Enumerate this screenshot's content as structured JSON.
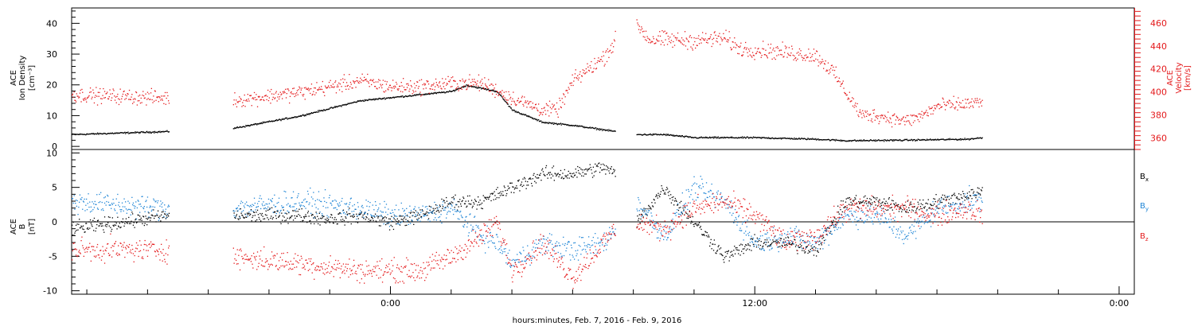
{
  "colors": {
    "black": "#000000",
    "red": "#e41a1c",
    "blue": "#1f85d6"
  },
  "x_axis": {
    "title": "hours:minutes, Feb.  7, 2016 - Feb.  9, 2016",
    "range_hours": [
      -10.5,
      24.5
    ],
    "major_ticks": [
      {
        "hour": 0,
        "label": "0:00"
      },
      {
        "hour": 12,
        "label": "12:00"
      },
      {
        "hour": 24,
        "label": "0:00"
      }
    ]
  },
  "top_panel": {
    "left_label": [
      "ACE",
      "Ion Density",
      "[cm⁻³]"
    ],
    "right_label": [
      "ACE",
      "Velocity",
      "[km/s]"
    ]
  },
  "bottom_panel": {
    "left_label": [
      "ACE",
      "B",
      "[nT]"
    ],
    "legend": [
      {
        "text": "B",
        "sub": "x",
        "color": "#000000"
      },
      {
        "text": "B",
        "sub": "y",
        "color": "#1f85d6"
      },
      {
        "text": "B",
        "sub": "z",
        "color": "#e41a1c"
      }
    ]
  },
  "chart_data": [
    {
      "type": "scatter",
      "panel": "top",
      "ylim": [
        -1,
        45
      ],
      "yticks": [
        0,
        10,
        20,
        30,
        40
      ],
      "y2lim": [
        350,
        473
      ],
      "y2ticks": [
        360,
        380,
        400,
        420,
        440,
        460
      ],
      "gaps_hours": [
        [
          -7.3,
          -5.2
        ],
        [
          7.4,
          8.1
        ]
      ],
      "series": [
        {
          "name": "Ion Density",
          "axis": "left",
          "color": "#000000",
          "anchors": [
            [
              -10.5,
              4
            ],
            [
              -7.3,
              5
            ],
            [
              -5.2,
              6
            ],
            [
              -3,
              10
            ],
            [
              -1,
              15
            ],
            [
              0,
              16
            ],
            [
              1,
              17
            ],
            [
              2,
              18
            ],
            [
              2.5,
              20
            ],
            [
              3.5,
              18
            ],
            [
              4,
              12
            ],
            [
              5,
              8
            ],
            [
              6,
              7
            ],
            [
              7.4,
              5
            ],
            [
              8.1,
              4
            ],
            [
              9,
              4
            ],
            [
              10,
              3
            ],
            [
              11,
              3
            ],
            [
              12,
              3
            ],
            [
              14,
              2.5
            ],
            [
              15,
              2
            ],
            [
              17,
              2.2
            ],
            [
              19,
              2.5
            ],
            [
              19.5,
              3
            ]
          ],
          "spread": 0.25
        },
        {
          "name": "Velocity",
          "axis": "right",
          "color": "#e41a1c",
          "anchors": [
            [
              -10.5,
              398
            ],
            [
              -7.3,
              395
            ],
            [
              -5.2,
              393
            ],
            [
              -3,
              400
            ],
            [
              -1,
              410
            ],
            [
              0,
              405
            ],
            [
              1,
              405
            ],
            [
              2,
              408
            ],
            [
              3,
              408
            ],
            [
              4,
              395
            ],
            [
              5,
              385
            ],
            [
              5.5,
              385
            ],
            [
              6,
              410
            ],
            [
              6.5,
              420
            ],
            [
              7,
              430
            ],
            [
              7.4,
              445
            ],
            [
              8.1,
              460
            ],
            [
              8.5,
              446
            ],
            [
              10,
              445
            ],
            [
              11,
              447
            ],
            [
              11.5,
              438
            ],
            [
              12.5,
              436
            ],
            [
              14,
              432
            ],
            [
              14.5,
              420
            ],
            [
              15,
              400
            ],
            [
              15.5,
              380
            ],
            [
              16,
              380
            ],
            [
              17,
              375
            ],
            [
              17.5,
              380
            ],
            [
              18,
              388
            ],
            [
              19,
              390
            ],
            [
              19.5,
              391
            ]
          ],
          "spread": 0.012
        }
      ]
    },
    {
      "type": "scatter",
      "panel": "bottom",
      "ylim": [
        -10.5,
        10.5
      ],
      "yticks": [
        -10,
        -5,
        0,
        5,
        10
      ],
      "gaps_hours": [
        [
          -7.3,
          -5.2
        ],
        [
          7.4,
          8.1
        ]
      ],
      "series": [
        {
          "name": "Bx",
          "color": "#000000",
          "anchors": [
            [
              -10.5,
              -1
            ],
            [
              -7.3,
              1
            ],
            [
              -5.2,
              1
            ],
            [
              -3,
              1
            ],
            [
              -2,
              0.5
            ],
            [
              -1,
              1
            ],
            [
              0,
              0
            ],
            [
              1,
              1
            ],
            [
              2,
              3
            ],
            [
              3,
              3
            ],
            [
              4,
              5
            ],
            [
              5,
              7
            ],
            [
              6,
              7
            ],
            [
              7,
              8
            ],
            [
              7.4,
              7
            ],
            [
              8.1,
              0
            ],
            [
              9,
              5
            ],
            [
              10,
              0
            ],
            [
              11,
              -5
            ],
            [
              12,
              -3
            ],
            [
              13,
              -3
            ],
            [
              14,
              -4
            ],
            [
              15,
              3
            ],
            [
              16,
              3
            ],
            [
              17,
              2
            ],
            [
              18,
              3
            ],
            [
              19,
              4
            ],
            [
              19.5,
              4.5
            ]
          ],
          "spread": 1.0
        },
        {
          "name": "By",
          "color": "#1f85d6",
          "anchors": [
            [
              -10.5,
              3
            ],
            [
              -7.3,
              2
            ],
            [
              -5.2,
              2
            ],
            [
              -3,
              3
            ],
            [
              -1,
              2
            ],
            [
              0,
              1
            ],
            [
              1,
              1
            ],
            [
              2,
              2
            ],
            [
              3,
              -2
            ],
            [
              3.5,
              -3
            ],
            [
              4,
              -6
            ],
            [
              5,
              -3
            ],
            [
              6,
              -4
            ],
            [
              7,
              -3
            ],
            [
              7.4,
              -1
            ],
            [
              8.1,
              3
            ],
            [
              9,
              -2
            ],
            [
              10,
              5
            ],
            [
              11,
              3
            ],
            [
              12,
              -3
            ],
            [
              13,
              -2
            ],
            [
              14,
              -3
            ],
            [
              15,
              1
            ],
            [
              16,
              1
            ],
            [
              17,
              -2
            ],
            [
              18,
              2
            ],
            [
              19,
              3
            ],
            [
              19.5,
              3
            ]
          ],
          "spread": 1.6
        },
        {
          "name": "Bz",
          "color": "#e41a1c",
          "anchors": [
            [
              -10.5,
              -4
            ],
            [
              -7.3,
              -4
            ],
            [
              -5.2,
              -5
            ],
            [
              -3,
              -6
            ],
            [
              -1,
              -7
            ],
            [
              0,
              -7
            ],
            [
              1,
              -7
            ],
            [
              2,
              -5
            ],
            [
              3,
              -2
            ],
            [
              3.5,
              0
            ],
            [
              4,
              -7
            ],
            [
              5,
              -3
            ],
            [
              6,
              -8
            ],
            [
              7,
              -3
            ],
            [
              7.4,
              -1
            ],
            [
              8.1,
              0
            ],
            [
              9,
              -1
            ],
            [
              10,
              2
            ],
            [
              11,
              3
            ],
            [
              12,
              1
            ],
            [
              13,
              -3
            ],
            [
              14,
              -2
            ],
            [
              15,
              2
            ],
            [
              16,
              2
            ],
            [
              17,
              2
            ],
            [
              18,
              1
            ],
            [
              19,
              2
            ],
            [
              19.5,
              1
            ]
          ],
          "spread": 1.6
        }
      ]
    }
  ]
}
